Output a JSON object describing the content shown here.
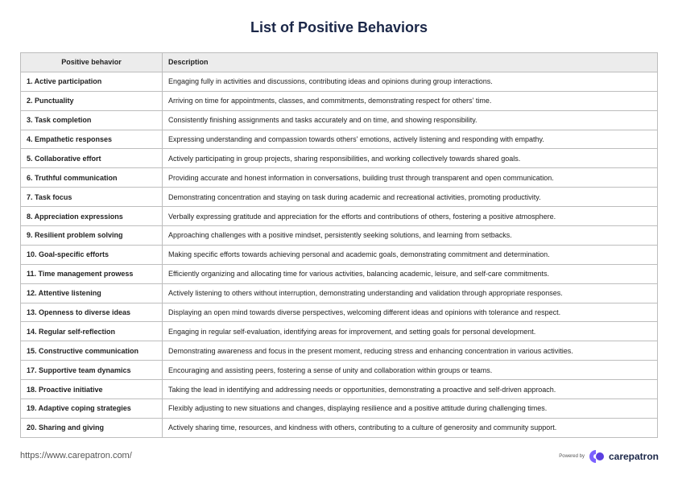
{
  "header": {
    "title": "List of Positive Behaviors"
  },
  "table": {
    "columns": [
      "Positive behavior",
      "Description"
    ],
    "rows": [
      [
        "1. Active participation",
        "Engaging fully in activities and discussions, contributing ideas and opinions during group interactions."
      ],
      [
        "2. Punctuality",
        "Arriving on time for appointments, classes, and commitments, demonstrating respect for others' time."
      ],
      [
        "3. Task completion",
        "Consistently finishing assignments and tasks accurately and on time, and showing responsibility."
      ],
      [
        "4. Empathetic responses",
        "Expressing understanding and compassion towards others' emotions, actively listening and responding with empathy."
      ],
      [
        "5. Collaborative effort",
        "Actively participating in group projects, sharing responsibilities, and working collectively towards shared goals."
      ],
      [
        "6. Truthful communication",
        "Providing accurate and honest information in conversations, building trust through transparent and open communication."
      ],
      [
        "7. Task focus",
        "Demonstrating concentration and staying on task during academic and recreational activities, promoting productivity."
      ],
      [
        "8. Appreciation expressions",
        "Verbally expressing gratitude and appreciation for the efforts and contributions of others, fostering a positive atmosphere."
      ],
      [
        "9. Resilient problem solving",
        "Approaching challenges with a positive mindset, persistently seeking solutions, and learning from setbacks."
      ],
      [
        "10. Goal-specific efforts",
        "Making specific efforts towards achieving personal and academic goals, demonstrating commitment and determination."
      ],
      [
        "11. Time management prowess",
        "Efficiently organizing and allocating time for various activities, balancing academic, leisure, and self-care commitments."
      ],
      [
        "12. Attentive listening",
        "Actively listening to others without interruption, demonstrating understanding and validation through appropriate responses."
      ],
      [
        "13. Openness to diverse ideas",
        "Displaying an open mind towards diverse perspectives, welcoming different ideas and opinions with tolerance and respect."
      ],
      [
        "14. Regular self-reflection",
        "Engaging in regular self-evaluation, identifying areas for improvement, and setting goals for personal development."
      ],
      [
        "15. Constructive communication",
        "Demonstrating awareness and focus in the present moment, reducing stress and enhancing concentration in various activities."
      ],
      [
        "17. Supportive team dynamics",
        "Encouraging and assisting peers, fostering a sense of unity and collaboration within groups or teams."
      ],
      [
        "18. Proactive initiative",
        "Taking the lead in identifying and addressing needs or opportunities, demonstrating a proactive and self-driven approach."
      ],
      [
        "19. Adaptive coping strategies",
        "Flexibly adjusting to new situations and changes, displaying resilience and a positive attitude during challenging times."
      ],
      [
        "20. Sharing and giving",
        "Actively sharing time, resources, and kindness with others, contributing to a culture of generosity and community support."
      ]
    ]
  },
  "footer": {
    "url": "https://www.carepatron.com/",
    "powered_by": "Powered by",
    "brand": "carepatron"
  }
}
